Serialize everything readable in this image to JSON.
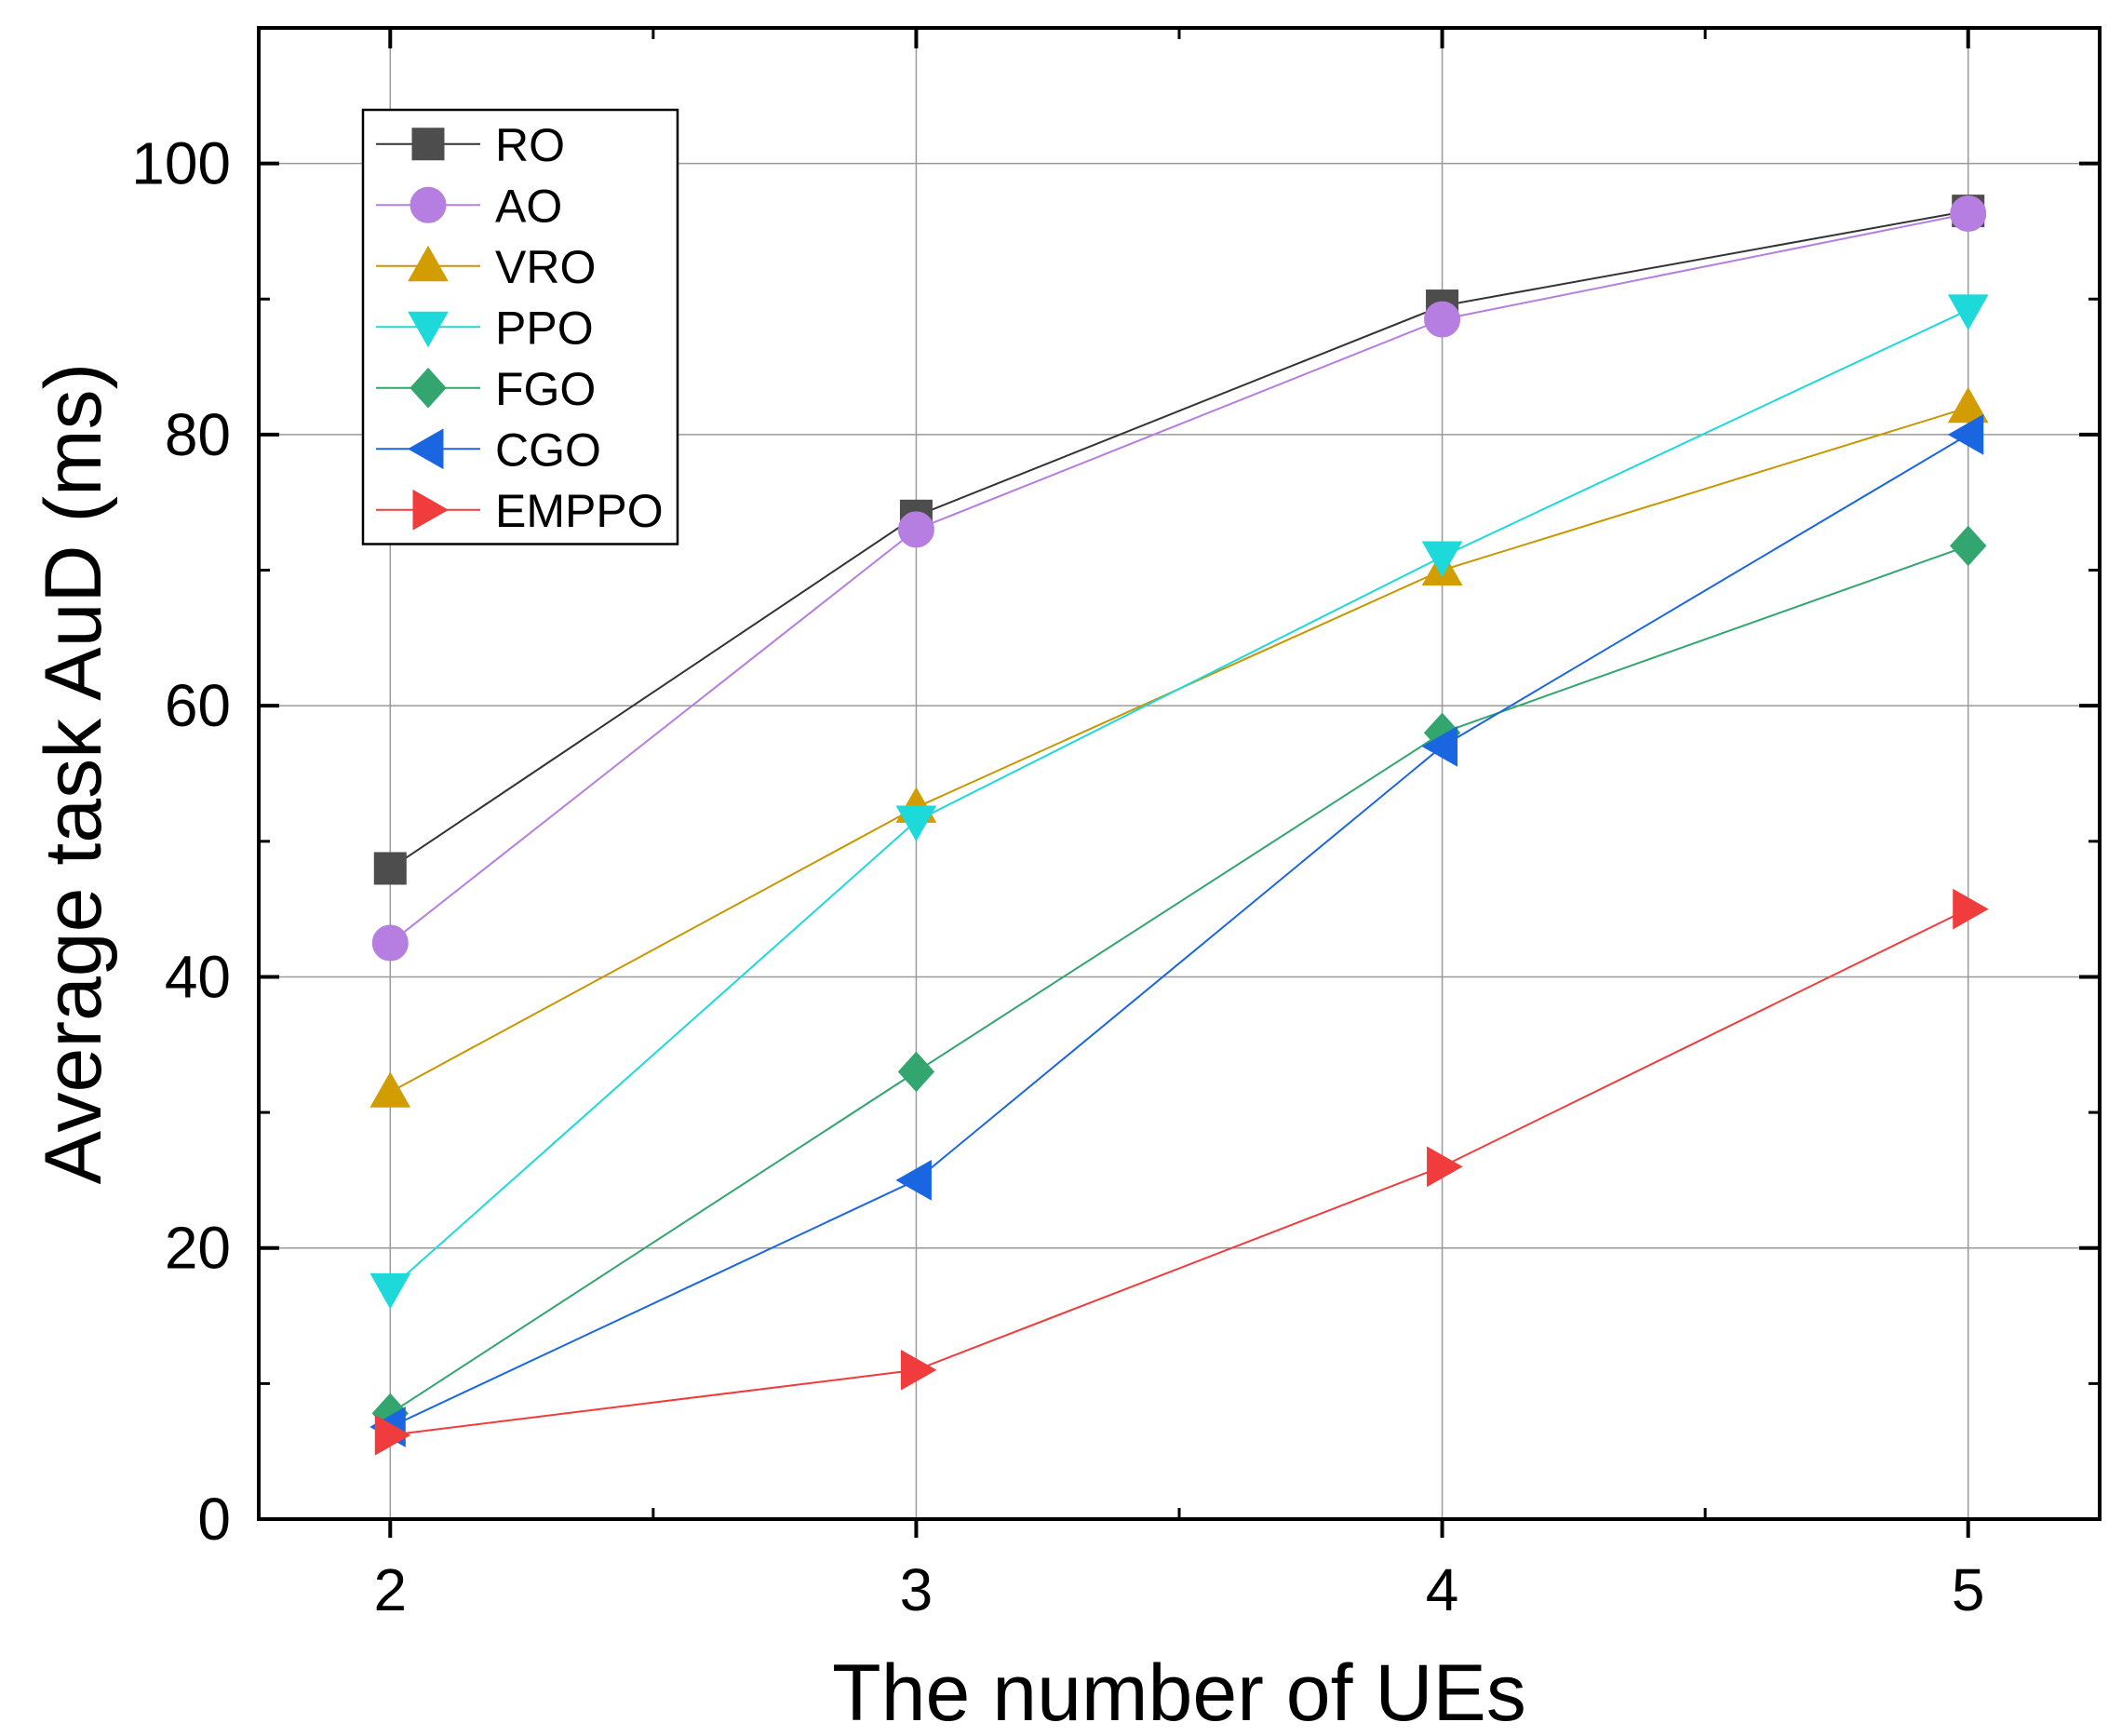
{
  "chart_data": {
    "type": "line",
    "xlabel": "The number of UEs",
    "ylabel": "Average task AuD (ms)",
    "x": [
      2,
      3,
      4,
      5
    ],
    "xticks": [
      "2",
      "3",
      "4",
      "5"
    ],
    "yticks": [
      "0",
      "20",
      "40",
      "60",
      "80",
      "100"
    ],
    "xlim": [
      1.75,
      5.25
    ],
    "ylim": [
      0,
      110
    ],
    "grid": true,
    "legend_position": "top-left",
    "series": [
      {
        "name": "RO",
        "marker": "square",
        "color": "#4d4d4d",
        "line_color": "#333333",
        "values": [
          48,
          74,
          89.5,
          96.5
        ]
      },
      {
        "name": "AO",
        "marker": "circle",
        "color": "#b57ee0",
        "line_color": "#b57ee0",
        "values": [
          42.5,
          73,
          88.5,
          96.3
        ]
      },
      {
        "name": "VRO",
        "marker": "triangle-up",
        "color": "#d19d00",
        "line_color": "#c89600",
        "values": [
          31.5,
          52.5,
          70,
          82
        ]
      },
      {
        "name": "PPO",
        "marker": "triangle-down",
        "color": "#1ed9d9",
        "line_color": "#1ed9d9",
        "values": [
          17,
          51.5,
          71,
          89.2
        ]
      },
      {
        "name": "FGO",
        "marker": "diamond",
        "color": "#32a66e",
        "line_color": "#32a66e",
        "values": [
          7.8,
          33,
          58,
          71.8
        ]
      },
      {
        "name": "CGO",
        "marker": "triangle-left",
        "color": "#1a66e0",
        "line_color": "#1a66e0",
        "values": [
          6.8,
          25,
          57,
          80
        ]
      },
      {
        "name": "EMPPO",
        "marker": "triangle-right",
        "color": "#f03c3c",
        "line_color": "#f03c3c",
        "values": [
          6.2,
          11,
          26,
          45
        ]
      }
    ]
  }
}
